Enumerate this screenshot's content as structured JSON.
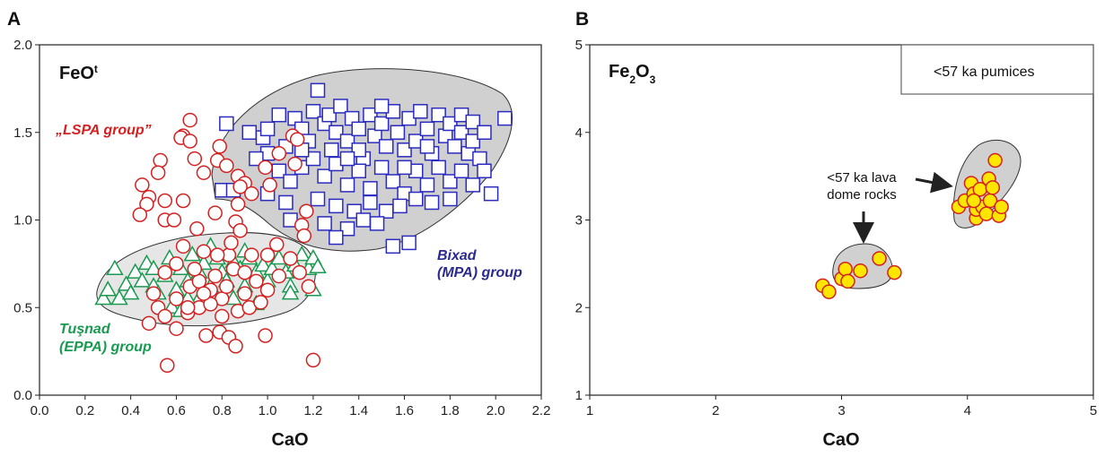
{
  "chart_data": [
    {
      "type": "scatter",
      "panel_label": "A",
      "xlabel": "CaO",
      "ylabel_parts": [
        {
          "text": "FeO",
          "script": "normal"
        },
        {
          "text": "t",
          "script": "sup"
        }
      ],
      "xlim": [
        0,
        2.2
      ],
      "ylim": [
        0,
        2.0
      ],
      "xticks": [
        {
          "value": 0,
          "label": "0.0"
        },
        0.2,
        0.4,
        0.6,
        0.8,
        {
          "value": 1,
          "label": "1.0"
        },
        1.2,
        1.4,
        1.6,
        1.8,
        {
          "value": 2,
          "label": "2.0"
        },
        2.2
      ],
      "yticks": [
        {
          "value": 0,
          "label": "0.0"
        },
        0.5,
        {
          "value": 1,
          "label": "1.0"
        },
        1.5,
        {
          "value": 2,
          "label": "2.0"
        }
      ],
      "annotations": [
        "„LSPA group”",
        "Bixad",
        "(MPA) group",
        "Tuşnad",
        "(EPPA) group"
      ],
      "series": [
        {
          "marker": "triangle",
          "color": "#1a9a50",
          "x": [
            0.28,
            0.3,
            0.33,
            0.35,
            0.38,
            0.4,
            0.42,
            0.45,
            0.47,
            0.5,
            0.52,
            0.55,
            0.57,
            0.6,
            0.62,
            0.65,
            0.67,
            0.7,
            0.72,
            0.75,
            0.78,
            0.8,
            0.82,
            0.85,
            0.88,
            0.9,
            0.92,
            0.95,
            0.98,
            1.0,
            1.02,
            1.05,
            1.08,
            1.1,
            1.12,
            1.15,
            1.18,
            1.2,
            1.22,
            0.58,
            0.62,
            0.7,
            0.85,
            0.95,
            1.1,
            1.2,
            0.75,
            0.9,
            0.5,
            0.65
          ],
          "values": [
            0.55,
            0.6,
            0.72,
            0.55,
            0.63,
            0.58,
            0.7,
            0.65,
            0.75,
            0.62,
            0.58,
            0.68,
            0.78,
            0.6,
            0.72,
            0.65,
            0.8,
            0.7,
            0.75,
            0.62,
            0.78,
            0.7,
            0.65,
            0.76,
            0.72,
            0.62,
            0.78,
            0.7,
            0.74,
            0.65,
            0.72,
            0.78,
            0.7,
            0.62,
            0.74,
            0.8,
            0.72,
            0.78,
            0.73,
            0.5,
            0.48,
            0.55,
            0.55,
            0.52,
            0.58,
            0.6,
            0.85,
            0.82,
            0.72,
            0.55
          ]
        },
        {
          "marker": "square",
          "color": "#2b2bbf",
          "x": [
            0.8,
            0.85,
            0.82,
            0.92,
            0.98,
            1.0,
            1.05,
            1.08,
            1.12,
            1.15,
            1.18,
            1.2,
            1.22,
            1.25,
            1.27,
            1.28,
            1.3,
            1.32,
            1.35,
            1.37,
            1.4,
            1.42,
            1.45,
            1.47,
            1.5,
            1.52,
            1.55,
            1.57,
            1.6,
            1.62,
            1.65,
            1.67,
            1.7,
            1.72,
            1.75,
            1.78,
            1.8,
            1.82,
            1.85,
            1.88,
            1.9,
            1.93,
            1.95,
            1.98,
            2.04,
            1.0,
            1.05,
            1.1,
            1.15,
            1.2,
            1.25,
            1.3,
            1.35,
            1.4,
            1.45,
            1.5,
            1.55,
            1.6,
            1.65,
            1.7,
            1.75,
            1.8,
            1.85,
            1.9,
            1.22,
            1.3,
            1.38,
            1.45,
            1.52,
            1.58,
            1.65,
            1.72,
            1.8,
            1.25,
            1.35,
            1.3,
            1.55,
            1.62,
            1.42,
            1.48,
            1.1,
            1.0,
            1.08,
            1.4,
            1.6,
            1.7,
            1.85,
            1.9,
            1.95,
            1.15,
            0.95,
            1.5,
            1.35
          ],
          "values": [
            1.17,
            1.17,
            1.55,
            1.5,
            1.47,
            1.52,
            1.6,
            1.42,
            1.58,
            1.52,
            1.45,
            1.62,
            1.74,
            1.55,
            1.6,
            1.4,
            1.5,
            1.65,
            1.45,
            1.58,
            1.52,
            1.35,
            1.6,
            1.48,
            1.55,
            1.42,
            1.62,
            1.5,
            1.4,
            1.58,
            1.45,
            1.62,
            1.52,
            1.38,
            1.6,
            1.48,
            1.55,
            1.42,
            1.5,
            1.38,
            1.45,
            1.35,
            1.28,
            1.15,
            1.58,
            1.38,
            1.28,
            1.22,
            1.3,
            1.35,
            1.25,
            1.32,
            1.2,
            1.28,
            1.18,
            1.3,
            1.22,
            1.15,
            1.28,
            1.2,
            1.3,
            1.22,
            1.28,
            1.2,
            1.12,
            1.08,
            1.05,
            1.1,
            1.05,
            1.08,
            1.12,
            1.1,
            1.12,
            0.98,
            0.95,
            0.9,
            0.85,
            0.87,
            1.0,
            0.98,
            1.0,
            1.15,
            1.1,
            1.4,
            1.3,
            1.42,
            1.6,
            1.56,
            1.5,
            1.4,
            1.35,
            1.65,
            1.35
          ]
        },
        {
          "marker": "circle",
          "color": "#d42020",
          "x": [
            0.66,
            0.63,
            0.62,
            0.53,
            0.52,
            0.68,
            0.66,
            0.72,
            0.79,
            0.78,
            0.82,
            0.87,
            0.9,
            0.88,
            0.93,
            0.99,
            1.01,
            1.11,
            1.13,
            1.05,
            1.12,
            0.45,
            0.48,
            0.47,
            0.44,
            0.55,
            0.55,
            0.59,
            0.63,
            0.77,
            0.87,
            0.86,
            0.88,
            0.69,
            0.83,
            0.78,
            0.84,
            1.17,
            1.15,
            1.16,
            0.72,
            0.63,
            0.6,
            0.55,
            0.66,
            0.7,
            0.75,
            0.8,
            0.85,
            0.9,
            0.95,
            1.0,
            1.05,
            1.1,
            1.14,
            1.18,
            1.0,
            1.04,
            0.93,
            0.5,
            0.52,
            0.55,
            0.6,
            0.65,
            0.7,
            0.75,
            0.8,
            0.87,
            0.92,
            0.97,
            0.48,
            0.6,
            0.73,
            0.79,
            0.83,
            0.86,
            0.99,
            0.56,
            1.2,
            0.65,
            0.72,
            0.82,
            0.9,
            0.77,
            0.68
          ],
          "values": [
            1.57,
            1.48,
            1.47,
            1.34,
            1.27,
            1.35,
            1.45,
            1.27,
            1.42,
            1.34,
            1.31,
            1.25,
            1.21,
            1.19,
            1.15,
            1.3,
            1.2,
            1.48,
            1.46,
            1.38,
            1.32,
            1.2,
            1.13,
            1.09,
            1.03,
            1.11,
            1.0,
            1.0,
            1.11,
            1.04,
            1.09,
            0.99,
            0.94,
            0.95,
            0.8,
            0.8,
            0.87,
            1.05,
            0.97,
            0.91,
            0.82,
            0.85,
            0.75,
            0.7,
            0.62,
            0.65,
            0.6,
            0.55,
            0.72,
            0.7,
            0.65,
            0.6,
            0.68,
            0.78,
            0.7,
            0.62,
            0.8,
            0.86,
            0.8,
            0.58,
            0.5,
            0.45,
            0.55,
            0.47,
            0.5,
            0.52,
            0.45,
            0.48,
            0.5,
            0.53,
            0.41,
            0.38,
            0.34,
            0.36,
            0.33,
            0.28,
            0.34,
            0.17,
            0.2,
            0.5,
            0.58,
            0.62,
            0.58,
            0.68,
            0.72
          ]
        }
      ]
    },
    {
      "type": "scatter",
      "panel_label": "B",
      "xlabel": "CaO",
      "ylabel_parts": [
        {
          "text": "Fe",
          "script": "normal"
        },
        {
          "text": "2",
          "script": "sub"
        },
        {
          "text": "O",
          "script": "normal"
        },
        {
          "text": "3",
          "script": "sub"
        }
      ],
      "xlim": [
        1,
        5
      ],
      "ylim": [
        1,
        5
      ],
      "xticks": [
        1,
        2,
        3,
        4,
        5
      ],
      "yticks": [
        1,
        2,
        3,
        4,
        5
      ],
      "legend": "upper right",
      "annotations": [
        "<57 ka lava",
        "dome rocks"
      ],
      "series": [
        {
          "name": "<57 ka pumices",
          "marker": "circle",
          "color": "#ffe600",
          "edgecolor": "#d42020",
          "x": [
            2.85,
            2.9,
            3.0,
            3.03,
            3.05,
            3.15,
            3.3,
            3.42,
            3.93,
            3.98,
            4.03,
            4.05,
            4.07,
            4.07,
            4.1,
            4.12,
            4.15,
            4.17,
            4.18,
            4.2,
            4.22,
            4.25,
            4.27,
            4.05
          ],
          "values": [
            2.25,
            2.18,
            2.33,
            2.44,
            2.3,
            2.42,
            2.56,
            2.4,
            3.15,
            3.22,
            3.42,
            3.3,
            3.02,
            3.12,
            3.35,
            3.15,
            3.07,
            3.47,
            3.22,
            3.37,
            3.68,
            3.05,
            3.15,
            3.22
          ]
        }
      ]
    }
  ]
}
